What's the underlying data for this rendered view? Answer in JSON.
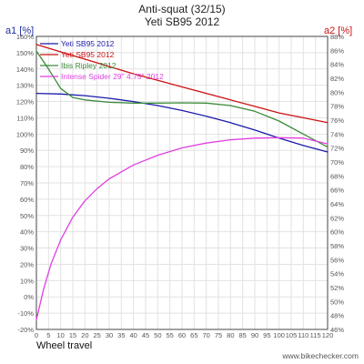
{
  "chart_data": {
    "type": "line",
    "title": "Anti-squat (32/15)",
    "subtitle": "Yeti SB95 2012",
    "ylabel_left": "a1 [%]",
    "ylabel_right": "a2 [%]",
    "xlabel": "Wheel travel",
    "source": "www.bikechecker.com",
    "xlim": [
      0,
      120
    ],
    "ylim_left": [
      -20,
      160
    ],
    "ylim_right": [
      46,
      88
    ],
    "x_ticks": [
      0,
      5,
      10,
      15,
      20,
      25,
      30,
      35,
      40,
      45,
      50,
      55,
      60,
      65,
      70,
      75,
      80,
      85,
      90,
      95,
      100,
      105,
      110,
      115,
      120
    ],
    "y_left_ticks": [
      "-20%",
      "-10%",
      "0%",
      "10%",
      "20%",
      "30%",
      "40%",
      "50%",
      "60%",
      "70%",
      "80%",
      "90%",
      "100%",
      "110%",
      "120%",
      "130%",
      "140%",
      "150%",
      "160%"
    ],
    "y_right_ticks": [
      "46%",
      "48%",
      "50%",
      "52%",
      "54%",
      "56%",
      "58%",
      "60%",
      "62%",
      "64%",
      "66%",
      "68%",
      "70%",
      "72%",
      "74%",
      "76%",
      "78%",
      "80%",
      "82%",
      "84%",
      "86%",
      "88%"
    ],
    "grid": true,
    "legend_position": "top-left",
    "series": [
      {
        "name": "Yeti SB95 2012",
        "axis": "left",
        "color": "#1a1aaa",
        "x": [
          0,
          10,
          20,
          30,
          40,
          50,
          60,
          70,
          80,
          90,
          100,
          110,
          120
        ],
        "y": [
          125,
          124.6,
          123.6,
          122,
          120,
          117.5,
          114.5,
          111,
          107,
          102.5,
          97.5,
          93,
          89
        ]
      },
      {
        "name": "Yeti SB95 2012",
        "axis": "left",
        "color": "#cc1111",
        "x": [
          0,
          10,
          20,
          30,
          40,
          50,
          60,
          70,
          80,
          90,
          100,
          110,
          120
        ],
        "y": [
          155,
          150.5,
          146,
          141.5,
          137,
          133,
          129,
          125,
          121,
          117,
          113,
          110,
          107
        ]
      },
      {
        "name": "Ibis Ripley 2012",
        "axis": "left",
        "color": "#3a8a3a",
        "x": [
          0,
          5,
          10,
          15,
          20,
          30,
          40,
          50,
          60,
          70,
          80,
          90,
          100,
          110,
          120
        ],
        "y": [
          151,
          140,
          128,
          122.5,
          121,
          119.5,
          119,
          119,
          119.2,
          119,
          117.5,
          114,
          108,
          100,
          92
        ]
      },
      {
        "name": "Intense Spider 29\" 4.75\" 2012",
        "axis": "left",
        "color": "#e040e0",
        "x": [
          0,
          3,
          6,
          10,
          15,
          20,
          25,
          30,
          40,
          50,
          60,
          70,
          80,
          90,
          100,
          110,
          120
        ],
        "y": [
          -14,
          5,
          20,
          35,
          49,
          59,
          66.5,
          72.5,
          81,
          87,
          91.5,
          94.5,
          96.5,
          97.5,
          97.8,
          97.5,
          94
        ]
      }
    ]
  }
}
